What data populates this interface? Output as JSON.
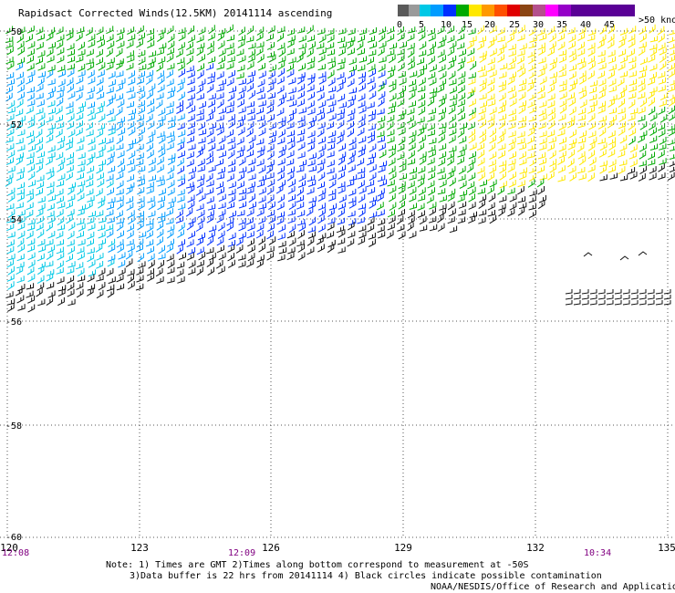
{
  "title": "Rapidsact Corrected Winds(12.5KM) 20141114 ascending",
  "legend": {
    "labels": [
      "0",
      "5",
      "10",
      "15",
      "20",
      "25",
      "30",
      "35",
      "40",
      "45",
      ">50 knots"
    ],
    "colors": [
      "#5a5a5a",
      "#9a9a9a",
      "#00c8e6",
      "#009cff",
      "#0030ff",
      "#00aa00",
      "#ffe800",
      "#ff9900",
      "#ff5000",
      "#e00000",
      "#8b4513",
      "#b4508c",
      "#ff00ff",
      "#9600c8",
      "#5a0096"
    ]
  },
  "axes": {
    "lat_labels": [
      "-50",
      "-52",
      "-54",
      "-56",
      "-58",
      "-60"
    ],
    "lon_labels": [
      "120",
      "123",
      "126",
      "129",
      "132",
      "135"
    ]
  },
  "times": [
    "12:08",
    "12:09",
    "10:34"
  ],
  "notes": {
    "line1": "Note: 1) Times are GMT 2)Times along bottom correspond to measurement at -50S",
    "line2": "3)Data buffer is 22 hrs from 20141114 4) Black circles indicate possible contamination",
    "line3": "NOAA/NESDIS/Office of Research and Applications"
  }
}
